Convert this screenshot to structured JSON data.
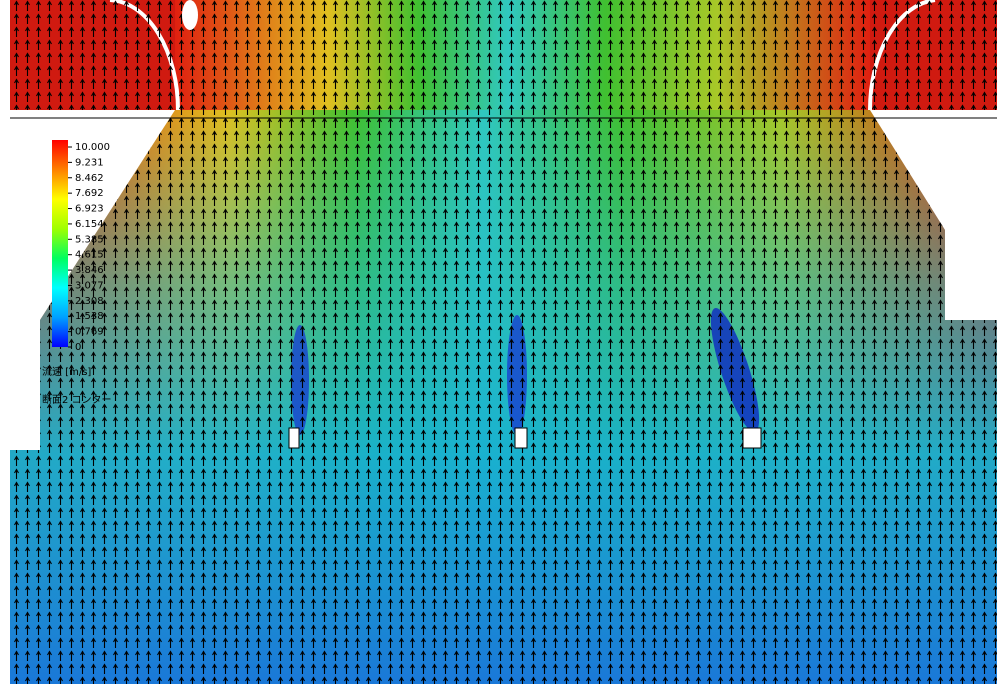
{
  "legend": {
    "title": "流速 [m/s]",
    "subtitle": "断面2 コンター",
    "clim": [
      0,
      10
    ],
    "colors": [
      "#0000ff",
      "#00a0ff",
      "#00ffff",
      "#00ff60",
      "#a0ff00",
      "#ffff00",
      "#ff8000",
      "#ff0000"
    ],
    "ticks": [
      {
        "value": 10,
        "label": "10.000"
      },
      {
        "value": 9.231,
        "label": "9.231"
      },
      {
        "value": 8.462,
        "label": "8.462"
      },
      {
        "value": 7.692,
        "label": "7.692"
      },
      {
        "value": 6.923,
        "label": "6.923"
      },
      {
        "value": 6.154,
        "label": "6.154"
      },
      {
        "value": 5.385,
        "label": "5.385"
      },
      {
        "value": 4.615,
        "label": "4.615"
      },
      {
        "value": 3.846,
        "label": "3.846"
      },
      {
        "value": 3.077,
        "label": "3.077"
      },
      {
        "value": 2.308,
        "label": "2.308"
      },
      {
        "value": 1.538,
        "label": "1.538"
      },
      {
        "value": 0.769,
        "label": "0.769"
      },
      0
    ]
  }
}
